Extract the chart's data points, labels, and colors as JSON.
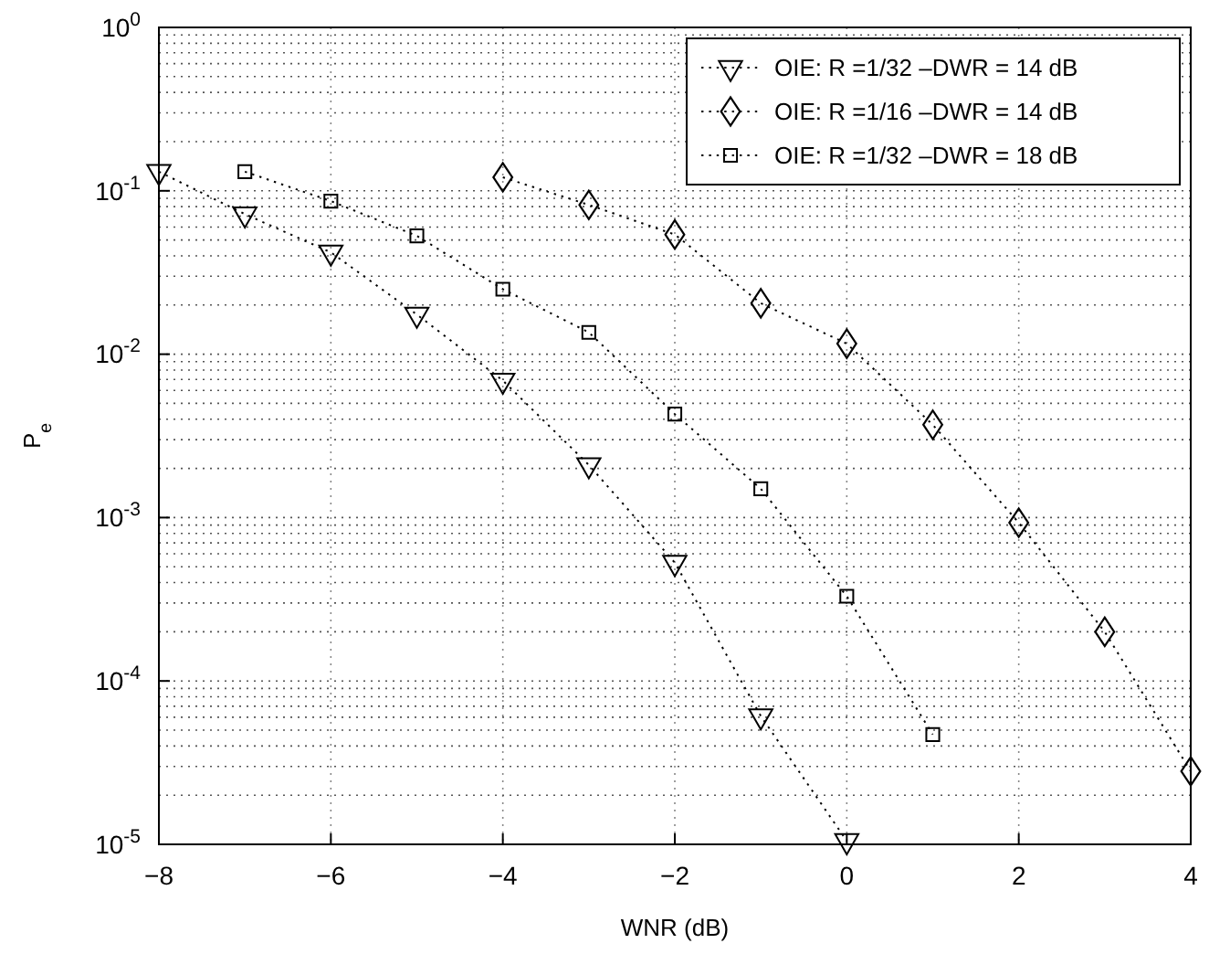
{
  "chart_data": {
    "type": "line",
    "xlabel": "WNR (dB)",
    "ylabel": "P$_{e}$",
    "log": "y",
    "grid": true,
    "legend": "top right",
    "line_style": "dotted",
    "xlim": [
      -8,
      4
    ],
    "xticks": [
      -8,
      -6,
      -4,
      -2,
      0,
      2,
      4
    ],
    "ylim": [
      1e-05,
      1
    ],
    "yticks": [
      {
        "value": 1,
        "label": "10$^{0}$"
      },
      {
        "value": 0.1,
        "label": "10$^{-1}$"
      },
      {
        "value": 0.01,
        "label": "10$^{-2}$"
      },
      {
        "value": 0.001,
        "label": "10$^{-3}$"
      },
      {
        "value": 0.0001,
        "label": "10$^{-4}$"
      },
      {
        "value": 1e-05,
        "label": "10$^{-5}$"
      }
    ],
    "series": [
      {
        "name": "OIE: R =1/32 –DWR = 14 dB",
        "color": "#000000",
        "marker": "triangle",
        "x": [
          -8,
          -7,
          -6,
          -5,
          -4,
          -3,
          -2,
          -1,
          0
        ],
        "values": [
          0.131,
          0.072,
          0.042,
          0.0175,
          0.0069,
          0.0021,
          0.00053,
          6.1e-05,
          1.05e-05
        ]
      },
      {
        "name": "OIE: R =1/16 –DWR = 14 dB",
        "color": "#000000",
        "marker": "diamond",
        "x": [
          -4,
          -3,
          -2,
          -1,
          0,
          1,
          2,
          3,
          4
        ],
        "values": [
          0.121,
          0.082,
          0.054,
          0.0205,
          0.0116,
          0.0037,
          0.00093,
          0.0002,
          2.8e-05
        ]
      },
      {
        "name": "OIE: R =1/32 –DWR = 18 dB",
        "color": "#000000",
        "marker": "square",
        "x": [
          -7,
          -6,
          -5,
          -4,
          -3,
          -2,
          -1,
          0,
          1
        ],
        "values": [
          0.131,
          0.0865,
          0.053,
          0.025,
          0.0136,
          0.0043,
          0.0015,
          0.00033,
          4.7e-05
        ]
      }
    ]
  }
}
